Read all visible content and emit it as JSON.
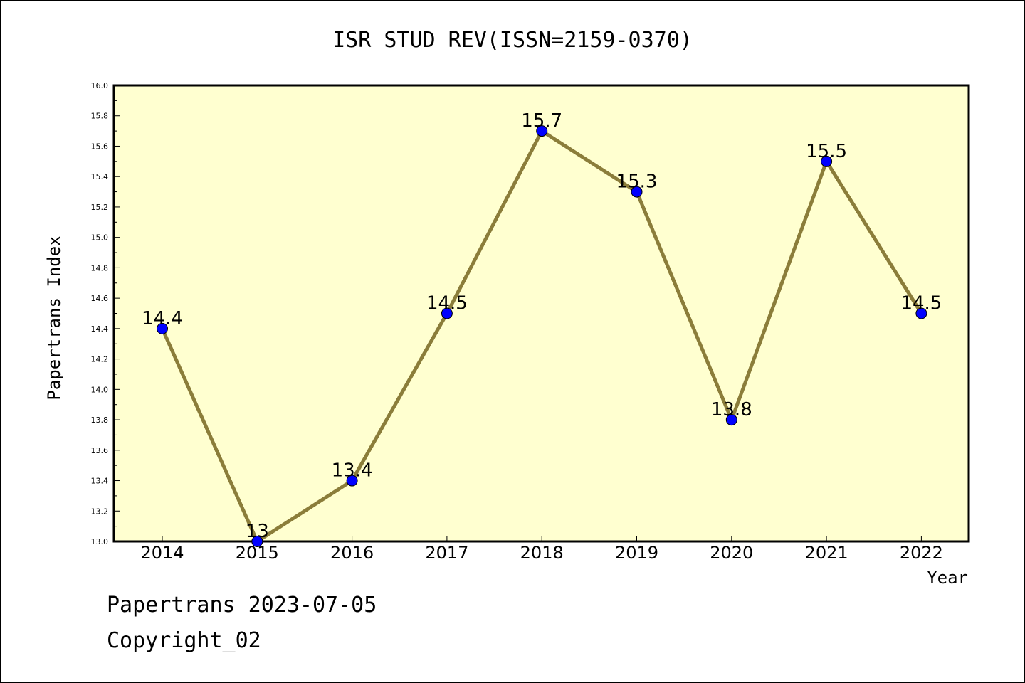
{
  "chart_data": {
    "type": "line",
    "title": "ISR STUD REV(ISSN=2159-0370)",
    "xlabel": "Year",
    "ylabel": "Papertrans Index",
    "categories": [
      "2014",
      "2015",
      "2016",
      "2017",
      "2018",
      "2019",
      "2020",
      "2021",
      "2022"
    ],
    "values": [
      14.4,
      13,
      13.4,
      14.5,
      15.7,
      15.3,
      13.8,
      15.5,
      14.5
    ],
    "data_labels": [
      "14.4",
      "13",
      "13.4",
      "14.5",
      "15.7",
      "15.3",
      "13.8",
      "15.5",
      "14.5"
    ],
    "ylim": [
      13.0,
      16.0
    ],
    "yticks": [
      "13.0",
      "13.2",
      "13.4",
      "13.6",
      "13.8",
      "14.0",
      "14.2",
      "14.4",
      "14.6",
      "14.8",
      "15.0",
      "15.2",
      "15.4",
      "15.6",
      "15.8",
      "16.0"
    ],
    "grid": false,
    "colors": {
      "plot_background": "#FFFFD0",
      "line": "#8B7D3A",
      "marker": "#0000FF"
    }
  },
  "footer": {
    "line1": "Papertrans 2023-07-05",
    "line2": "Copyright_02"
  }
}
